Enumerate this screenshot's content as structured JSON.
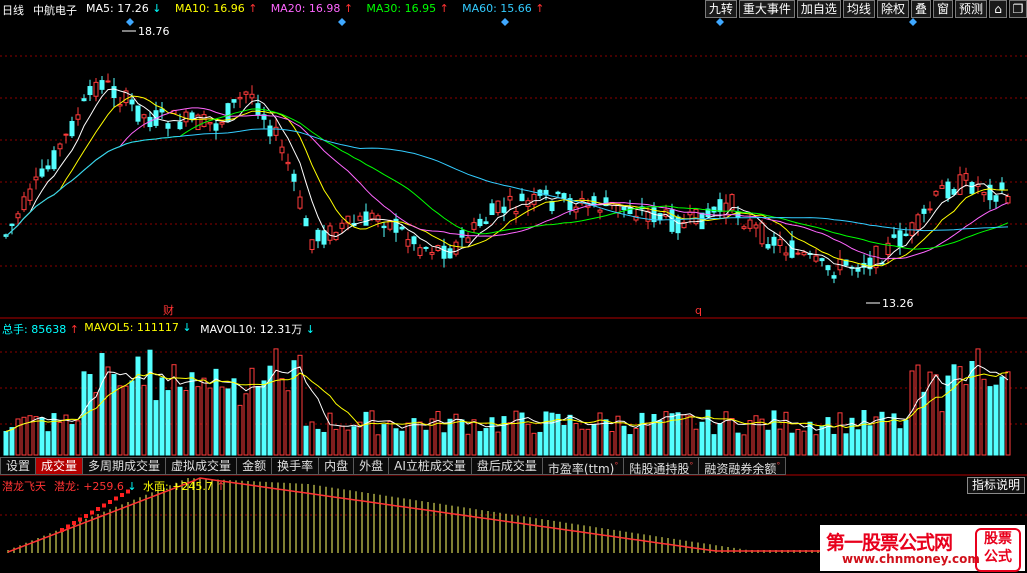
{
  "header": {
    "period": "日线",
    "stock_name": "中航电子",
    "ma_legend": [
      {
        "label": "MA5: 17.26",
        "arrow": "↓",
        "color": "#ffffff",
        "arrow_color": "#00ffff"
      },
      {
        "label": "MA10: 16.96",
        "arrow": "↑",
        "color": "#ffff00",
        "arrow_color": "#ff3333"
      },
      {
        "label": "MA20: 16.98",
        "arrow": "↑",
        "color": "#ff66ff",
        "arrow_color": "#ff3333"
      },
      {
        "label": "MA30: 16.95",
        "arrow": "↑",
        "color": "#00ff00",
        "arrow_color": "#ff3333"
      },
      {
        "label": "MA60: 15.66",
        "arrow": "↑",
        "color": "#33ccff",
        "arrow_color": "#ff3333"
      }
    ],
    "buttons": [
      "九转",
      "重大事件",
      "加自选",
      "均线",
      "除权",
      "叠",
      "窗",
      "预测"
    ],
    "icon_buttons": [
      "home-icon",
      "restore-icon"
    ]
  },
  "price_chart": {
    "high_label": "18.76",
    "low_label": "13.26",
    "marker_cai": "财",
    "marker_q": "q"
  },
  "volume_chart": {
    "legend": [
      {
        "label": "总手: 85638",
        "arrow": "↑",
        "color": "#00ffff",
        "arrow_color": "#ff3333"
      },
      {
        "label": "MAVOL5: 111117",
        "arrow": "↓",
        "color": "#ffff00",
        "arrow_color": "#00ffff"
      },
      {
        "label": "MAVOL10: 12.31万",
        "arrow": "↓",
        "color": "#ffffff",
        "arrow_color": "#00ffff"
      }
    ]
  },
  "tabs": [
    {
      "label": "设置",
      "active": false,
      "sup": ""
    },
    {
      "label": "成交量",
      "active": true,
      "sup": ""
    },
    {
      "label": "多周期成交量",
      "active": false,
      "sup": ""
    },
    {
      "label": "虚拟成交量",
      "active": false,
      "sup": ""
    },
    {
      "label": "金额",
      "active": false,
      "sup": ""
    },
    {
      "label": "换手率",
      "active": false,
      "sup": ""
    },
    {
      "label": "内盘",
      "active": false,
      "sup": ""
    },
    {
      "label": "外盘",
      "active": false,
      "sup": ""
    },
    {
      "label": "AI立桩成交量",
      "active": false,
      "sup": ""
    },
    {
      "label": "盘后成交量",
      "active": false,
      "sup": ""
    },
    {
      "label": "市盈率(ttm)",
      "active": false,
      "sup": "°"
    },
    {
      "label": "陆股通持股",
      "active": false,
      "sup": "°"
    },
    {
      "label": "融资融券余额",
      "active": false,
      "sup": "°"
    }
  ],
  "indicator": {
    "name": "潜龙飞天",
    "legend": [
      {
        "label": "潜龙: +259.6",
        "arrow": "↓",
        "color": "#ff3333",
        "arrow_color": "#00ffff"
      },
      {
        "label": "水面: +245.7",
        "arrow": "↑",
        "color": "#ffff00",
        "arrow_color": "#ff3333"
      }
    ],
    "help_button": "指标说明"
  },
  "watermark": {
    "title": "第一股票公式网",
    "url": "www.chnmoney.com",
    "seal_top": "股票",
    "seal_bottom": "公式"
  },
  "colors": {
    "up": "#ff3b3b",
    "down": "#54ffff",
    "grid": "#8b0000",
    "diamond": "#3fa8ff"
  }
}
